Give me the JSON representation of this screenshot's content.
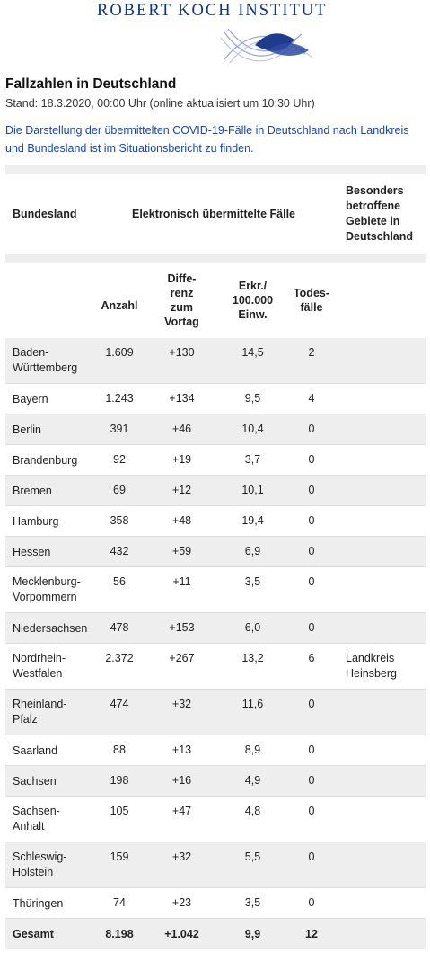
{
  "header": {
    "institute": "ROBERT KOCH INSTITUT",
    "title": "Fallzahlen in Deutschland",
    "stand": "Stand: 18.3.2020, 00:00 Uhr (online aktualisiert um 10:30 Uhr)",
    "intro": [
      "Die Darstellung der übermittelten COVID-19-Fälle in Deutschland nach Landkreis",
      "und Bundesland ist im Situationsbericht zu finden."
    ]
  },
  "table": {
    "group_headers": {
      "bundesland": "Bundesland",
      "elektronisch": "Elektronisch übermittelte Fälle",
      "besonders": [
        "Besonders",
        "betroffene",
        "Gebiete in",
        "Deutschland"
      ]
    },
    "sub_headers": {
      "anzahl": "Anzahl",
      "differenz": [
        "Diffe-",
        "renz",
        "zum",
        "Vortag"
      ],
      "erkr": [
        "Erkr./",
        "100.000",
        "Einw."
      ],
      "todes": [
        "Todes-",
        "fälle"
      ]
    },
    "rows": [
      {
        "land": [
          "Baden-",
          "Württemberg"
        ],
        "anzahl": "1.609",
        "diff": "+130",
        "erkr": "14,5",
        "tod": "2",
        "gebiete": []
      },
      {
        "land": [
          "Bayern"
        ],
        "anzahl": "1.243",
        "diff": "+134",
        "erkr": "9,5",
        "tod": "4",
        "gebiete": []
      },
      {
        "land": [
          "Berlin"
        ],
        "anzahl": "391",
        "diff": "+46",
        "erkr": "10,4",
        "tod": "0",
        "gebiete": []
      },
      {
        "land": [
          "Brandenburg"
        ],
        "anzahl": "92",
        "diff": "+19",
        "erkr": "3,7",
        "tod": "0",
        "gebiete": []
      },
      {
        "land": [
          "Bremen"
        ],
        "anzahl": "69",
        "diff": "+12",
        "erkr": "10,1",
        "tod": "0",
        "gebiete": []
      },
      {
        "land": [
          "Hamburg"
        ],
        "anzahl": "358",
        "diff": "+48",
        "erkr": "19,4",
        "tod": "0",
        "gebiete": []
      },
      {
        "land": [
          "Hessen"
        ],
        "anzahl": "432",
        "diff": "+59",
        "erkr": "6,9",
        "tod": "0",
        "gebiete": []
      },
      {
        "land": [
          "Mecklenburg-",
          "Vorpommern"
        ],
        "anzahl": "56",
        "diff": "+11",
        "erkr": "3,5",
        "tod": "0",
        "gebiete": []
      },
      {
        "land": [
          "Niedersachsen"
        ],
        "anzahl": "478",
        "diff": "+153",
        "erkr": "6,0",
        "tod": "0",
        "gebiete": []
      },
      {
        "land": [
          "Nordrhein-",
          "Westfalen"
        ],
        "anzahl": "2.372",
        "diff": "+267",
        "erkr": "13,2",
        "tod": "6",
        "gebiete": [
          "Landkreis",
          "Heinsberg"
        ]
      },
      {
        "land": [
          "Rheinland-",
          "Pfalz"
        ],
        "anzahl": "474",
        "diff": "+32",
        "erkr": "11,6",
        "tod": "0",
        "gebiete": []
      },
      {
        "land": [
          "Saarland"
        ],
        "anzahl": "88",
        "diff": "+13",
        "erkr": "8,9",
        "tod": "0",
        "gebiete": []
      },
      {
        "land": [
          "Sachsen"
        ],
        "anzahl": "198",
        "diff": "+16",
        "erkr": "4,9",
        "tod": "0",
        "gebiete": []
      },
      {
        "land": [
          "Sachsen-",
          "Anhalt"
        ],
        "anzahl": "105",
        "diff": "+47",
        "erkr": "4,8",
        "tod": "0",
        "gebiete": []
      },
      {
        "land": [
          "Schleswig-",
          "Holstein"
        ],
        "anzahl": "159",
        "diff": "+32",
        "erkr": "5,5",
        "tod": "0",
        "gebiete": []
      },
      {
        "land": [
          "Thüringen"
        ],
        "anzahl": "74",
        "diff": "+23",
        "erkr": "3,5",
        "tod": "0",
        "gebiete": []
      }
    ],
    "total": {
      "land": "Gesamt",
      "anzahl": "8.198",
      "diff": "+1.042",
      "erkr": "9,9",
      "tod": "12"
    }
  }
}
